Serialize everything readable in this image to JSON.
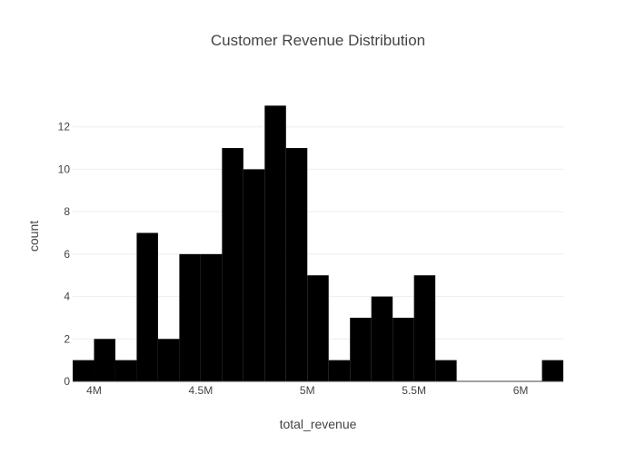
{
  "chart_data": {
    "type": "bar",
    "title": "Customer Revenue Distribution",
    "xlabel": "total_revenue",
    "ylabel": "count",
    "bin_width": 100000,
    "x_range": [
      3900000,
      6200000
    ],
    "y_range": [
      0,
      13.7
    ],
    "x_ticks": [
      {
        "value": 4000000,
        "label": "4M"
      },
      {
        "value": 4500000,
        "label": "4.5M"
      },
      {
        "value": 5000000,
        "label": "5M"
      },
      {
        "value": 5500000,
        "label": "5.5M"
      },
      {
        "value": 6000000,
        "label": "6M"
      }
    ],
    "y_ticks": [
      {
        "value": 0,
        "label": "0"
      },
      {
        "value": 2,
        "label": "2"
      },
      {
        "value": 4,
        "label": "4"
      },
      {
        "value": 6,
        "label": "6"
      },
      {
        "value": 8,
        "label": "8"
      },
      {
        "value": 10,
        "label": "10"
      },
      {
        "value": 12,
        "label": "12"
      }
    ],
    "bins": [
      {
        "x0": 3900000,
        "x1": 4000000,
        "count": 1
      },
      {
        "x0": 4000000,
        "x1": 4100000,
        "count": 2
      },
      {
        "x0": 4100000,
        "x1": 4200000,
        "count": 1
      },
      {
        "x0": 4200000,
        "x1": 4300000,
        "count": 7
      },
      {
        "x0": 4300000,
        "x1": 4400000,
        "count": 2
      },
      {
        "x0": 4400000,
        "x1": 4500000,
        "count": 6
      },
      {
        "x0": 4500000,
        "x1": 4600000,
        "count": 6
      },
      {
        "x0": 4600000,
        "x1": 4700000,
        "count": 11
      },
      {
        "x0": 4700000,
        "x1": 4800000,
        "count": 10
      },
      {
        "x0": 4800000,
        "x1": 4900000,
        "count": 13
      },
      {
        "x0": 4900000,
        "x1": 5000000,
        "count": 11
      },
      {
        "x0": 5000000,
        "x1": 5100000,
        "count": 5
      },
      {
        "x0": 5100000,
        "x1": 5200000,
        "count": 1
      },
      {
        "x0": 5200000,
        "x1": 5300000,
        "count": 3
      },
      {
        "x0": 5300000,
        "x1": 5400000,
        "count": 4
      },
      {
        "x0": 5400000,
        "x1": 5500000,
        "count": 3
      },
      {
        "x0": 5500000,
        "x1": 5600000,
        "count": 5
      },
      {
        "x0": 5600000,
        "x1": 5700000,
        "count": 1
      },
      {
        "x0": 5700000,
        "x1": 5800000,
        "count": 0
      },
      {
        "x0": 5800000,
        "x1": 5900000,
        "count": 0
      },
      {
        "x0": 5900000,
        "x1": 6000000,
        "count": 0
      },
      {
        "x0": 6000000,
        "x1": 6100000,
        "count": 0
      },
      {
        "x0": 6100000,
        "x1": 6200000,
        "count": 1
      }
    ],
    "bar_color": "#000000",
    "zero_line_color": "#444444",
    "grid_color": "#eeeeee",
    "grid": true,
    "legend": "none"
  }
}
